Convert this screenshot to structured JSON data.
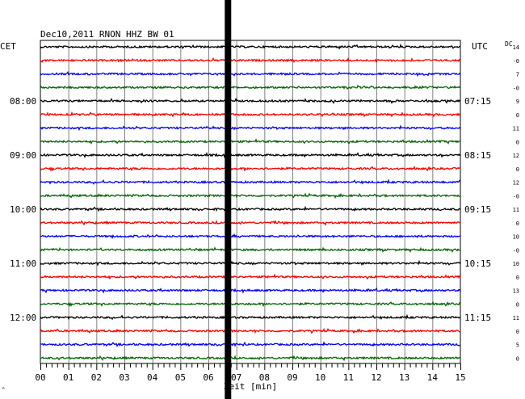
{
  "header": {
    "title": "Dec10,2011   RNON HHZ BW 01",
    "left_timezone": "CET",
    "right_timezone": "UTC",
    "dc_label": "DC",
    "corner_mark": "^"
  },
  "colors": {
    "trace_cycle": [
      "#000000",
      "#ff0000",
      "#0000ff",
      "#006400"
    ],
    "grid": "#000000",
    "event_band": "#000000"
  },
  "chart_data": {
    "type": "line",
    "title": "Dec10,2011   RNON HHZ BW 01",
    "xlabel": "Zeit [min]",
    "xlim": [
      0,
      15
    ],
    "x_ticks": [
      "00",
      "01",
      "02",
      "03",
      "04",
      "05",
      "06",
      "07",
      "08",
      "09",
      "10",
      "11",
      "12",
      "13",
      "14",
      "15"
    ],
    "left_time_labels": [
      "08:00",
      "09:00",
      "10:00",
      "11:00",
      "12:00"
    ],
    "right_time_labels": [
      "07:15",
      "08:15",
      "09:15",
      "10:15",
      "11:15"
    ],
    "time_label_rows": [
      4,
      8,
      12,
      16,
      20
    ],
    "traces": 24,
    "trace_interval_min": 15,
    "dc_offsets": [
      "14",
      "-0",
      "7",
      "-0",
      "9",
      "0",
      "11",
      "0",
      "12",
      "0",
      "12",
      "-0",
      "11",
      "0",
      "10",
      "-0",
      "10",
      "0",
      "13",
      "0",
      "11",
      "0",
      "5",
      "0"
    ],
    "event_marker_min": 6.7,
    "grid": true
  }
}
